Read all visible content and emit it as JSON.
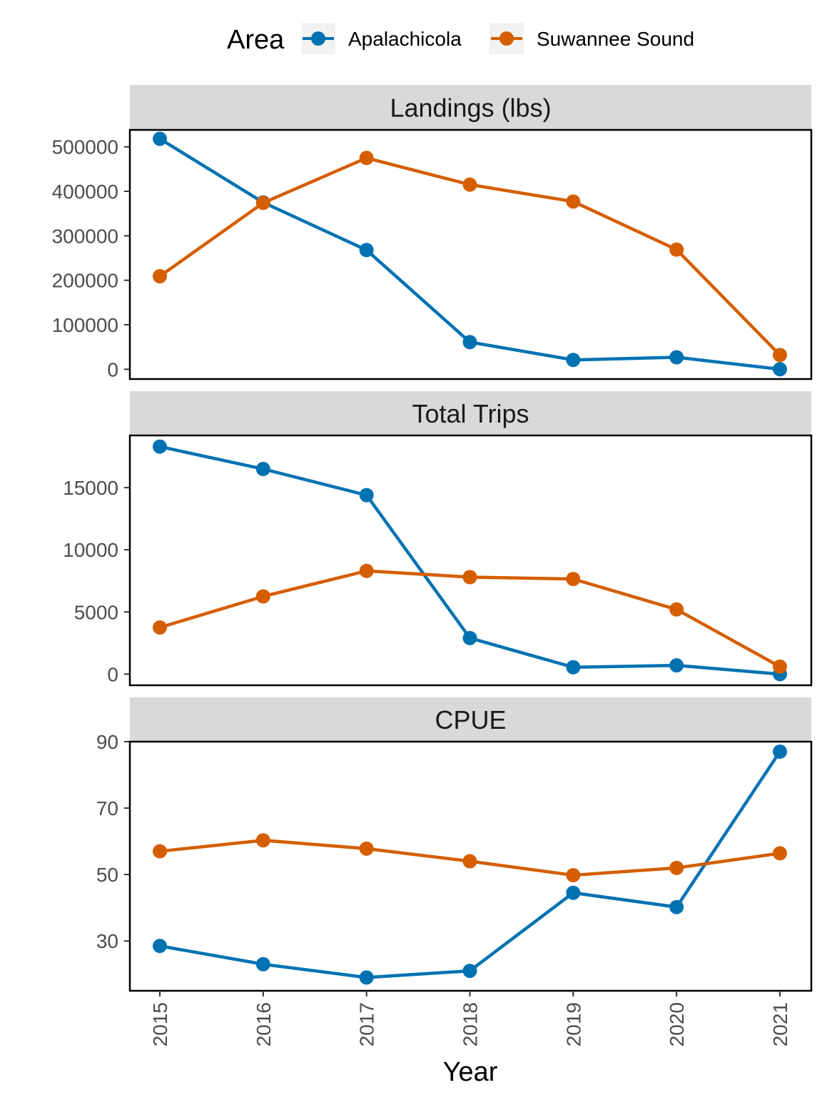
{
  "legend": {
    "title": "Area",
    "items": [
      {
        "label": "Apalachicola",
        "color": "#0072B2"
      },
      {
        "label": "Suwannee Sound",
        "color": "#D55E00"
      }
    ]
  },
  "xlabel": "Year",
  "chart_data": [
    {
      "type": "line",
      "title": "Landings (lbs)",
      "x": [
        2015,
        2016,
        2017,
        2018,
        2019,
        2020,
        2021
      ],
      "ylim": [
        -22000,
        538000
      ],
      "yticks": [
        0,
        100000,
        200000,
        300000,
        400000,
        500000
      ],
      "series": [
        {
          "name": "Apalachicola",
          "color": "#0072B2",
          "values": [
            518000,
            375000,
            268000,
            61000,
            21000,
            27000,
            0
          ]
        },
        {
          "name": "Suwannee Sound",
          "color": "#D55E00",
          "values": [
            209000,
            374000,
            475000,
            415000,
            377000,
            269000,
            32000
          ]
        }
      ]
    },
    {
      "type": "line",
      "title": "Total Trips",
      "x": [
        2015,
        2016,
        2017,
        2018,
        2019,
        2020,
        2021
      ],
      "ylim": [
        -900,
        19200
      ],
      "yticks": [
        0,
        5000,
        10000,
        15000
      ],
      "series": [
        {
          "name": "Apalachicola",
          "color": "#0072B2",
          "values": [
            18300,
            16500,
            14400,
            2900,
            550,
            700,
            0
          ]
        },
        {
          "name": "Suwannee Sound",
          "color": "#D55E00",
          "values": [
            3750,
            6250,
            8300,
            7800,
            7650,
            5200,
            600
          ]
        }
      ]
    },
    {
      "type": "line",
      "title": "CPUE",
      "x": [
        2015,
        2016,
        2017,
        2018,
        2019,
        2020,
        2021
      ],
      "ylim": [
        15,
        90
      ],
      "yticks": [
        30,
        50,
        70,
        90
      ],
      "series": [
        {
          "name": "Apalachicola",
          "color": "#0072B2",
          "values": [
            28.5,
            23,
            19,
            21,
            44.5,
            40.2,
            87
          ]
        },
        {
          "name": "Suwannee Sound",
          "color": "#D55E00",
          "values": [
            57,
            60.3,
            57.8,
            54,
            49.8,
            52,
            56.4
          ]
        }
      ]
    }
  ]
}
